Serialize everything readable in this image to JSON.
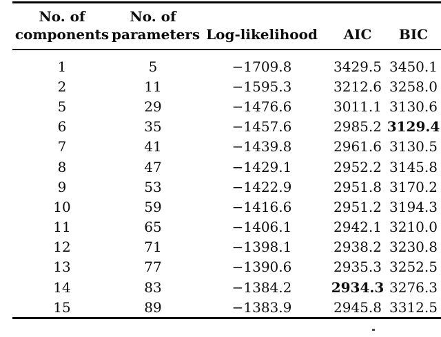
{
  "table": {
    "columns": [
      {
        "line1": "No. of",
        "line2": "components"
      },
      {
        "line1": "No. of",
        "line2": "parameters"
      },
      {
        "label": "Log-likelihood"
      },
      {
        "label": "AIC"
      },
      {
        "label": "BIC"
      }
    ],
    "rows": [
      {
        "cells": [
          "1",
          "5",
          "−1709.8",
          "3429.5",
          "3450.1"
        ],
        "bold_cols": []
      },
      {
        "cells": [
          "2",
          "11",
          "−1595.3",
          "3212.6",
          "3258.0"
        ],
        "bold_cols": []
      },
      {
        "cells": [
          "5",
          "29",
          "−1476.6",
          "3011.1",
          "3130.6"
        ],
        "bold_cols": []
      },
      {
        "cells": [
          "6",
          "35",
          "−1457.6",
          "2985.2",
          "3129.4"
        ],
        "bold_cols": [
          4
        ]
      },
      {
        "cells": [
          "7",
          "41",
          "−1439.8",
          "2961.6",
          "3130.5"
        ],
        "bold_cols": []
      },
      {
        "cells": [
          "8",
          "47",
          "−1429.1",
          "2952.2",
          "3145.8"
        ],
        "bold_cols": []
      },
      {
        "cells": [
          "9",
          "53",
          "−1422.9",
          "2951.8",
          "3170.2"
        ],
        "bold_cols": []
      },
      {
        "cells": [
          "10",
          "59",
          "−1416.6",
          "2951.2",
          "3194.3"
        ],
        "bold_cols": []
      },
      {
        "cells": [
          "11",
          "65",
          "−1406.1",
          "2942.1",
          "3210.0"
        ],
        "bold_cols": []
      },
      {
        "cells": [
          "12",
          "71",
          "−1398.1",
          "2938.2",
          "3230.8"
        ],
        "bold_cols": []
      },
      {
        "cells": [
          "13",
          "77",
          "−1390.6",
          "2935.3",
          "3252.5"
        ],
        "bold_cols": []
      },
      {
        "cells": [
          "14",
          "83",
          "−1384.2",
          "2934.3",
          "3276.3"
        ],
        "bold_cols": [
          3
        ]
      },
      {
        "cells": [
          "15",
          "89",
          "−1383.9",
          "2945.8",
          "3312.5"
        ],
        "bold_cols": []
      }
    ]
  }
}
